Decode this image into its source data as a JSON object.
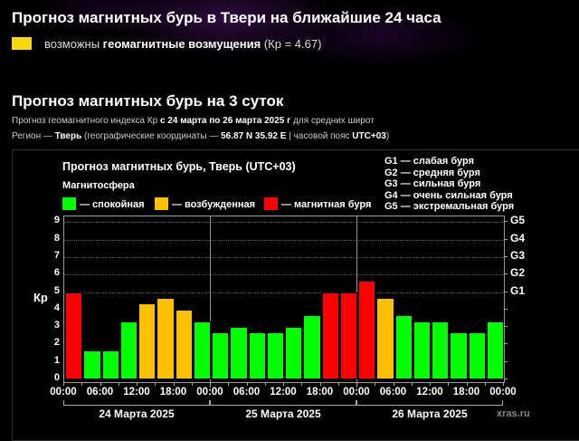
{
  "header": {
    "title": "Прогноз магнитных бурь в Твери на ближайшие 24 часа",
    "status_prefix": "возможны",
    "status_bold": "геомагнитные возмущения",
    "status_kp": "(Кр = 4.67)",
    "status_color": "#ffd700"
  },
  "section": {
    "title": "Прогноз магнитных бурь на 3 суток",
    "line1_prefix": "Прогноз геомагнитного индекса Кр",
    "line1_bold": "с 24 марта по 26 марта 2025 г",
    "line1_suffix": "для средних широт",
    "line2_prefix": "Регион —",
    "line2_region": "Тверь",
    "line2_mid": "(географические координаты —",
    "line2_coords": "56.87 N 35.92 E",
    "line2_tz_label": "| часовой пояс",
    "line2_tz": "UTC+03",
    "line2_end": ")"
  },
  "chart_data": {
    "type": "bar",
    "title": "Прогноз магнитных бурь, Тверь (UTC+03)",
    "legend_title": "Магнитосфера",
    "legend": [
      {
        "label": "— спокойная",
        "color": "#00ff00"
      },
      {
        "label": "— возбужденная",
        "color": "#ffc000"
      },
      {
        "label": "— магнитная буря",
        "color": "#ff0000"
      }
    ],
    "storm_scale": [
      "G1 — слабая буря",
      "G2 — средняя буря",
      "G3 — сильная буря",
      "G4 — очень сильная буря",
      "G5 — экстремальная буря"
    ],
    "ylabel": "Кр",
    "ylim": [
      0,
      9
    ],
    "yticks": [
      "0",
      "1",
      "2",
      "3",
      "4",
      "5",
      "6",
      "7",
      "8",
      "9"
    ],
    "right_ticks": [
      "G1",
      "G2",
      "G3",
      "G4",
      "G5"
    ],
    "xtick_labels": [
      "00:00",
      "06:00",
      "12:00",
      "18:00",
      "00:00",
      "06:00",
      "12:00",
      "18:00",
      "00:00",
      "06:00",
      "12:00",
      "18:00",
      "00:00"
    ],
    "days": [
      "24 Марта 2025",
      "25 Марта 2025",
      "26 Марта 2025"
    ],
    "interval_hours": 3,
    "values": [
      5.0,
      1.67,
      1.67,
      3.33,
      4.33,
      4.67,
      4.0,
      3.33,
      2.67,
      3.0,
      2.67,
      2.67,
      3.0,
      3.67,
      5.0,
      5.0,
      5.67,
      4.67,
      3.67,
      3.33,
      3.33,
      2.67,
      2.67,
      3.33
    ],
    "colors": [
      "red",
      "green",
      "green",
      "green",
      "orange",
      "orange",
      "orange",
      "green",
      "green",
      "green",
      "green",
      "green",
      "green",
      "green",
      "red",
      "red",
      "red",
      "orange",
      "green",
      "green",
      "green",
      "green",
      "green",
      "green"
    ],
    "color_map": {
      "green": "#00ff00",
      "orange": "#ffc000",
      "red": "#ff0000"
    },
    "grid": true
  },
  "footer": {
    "credit": "xras.ru"
  }
}
